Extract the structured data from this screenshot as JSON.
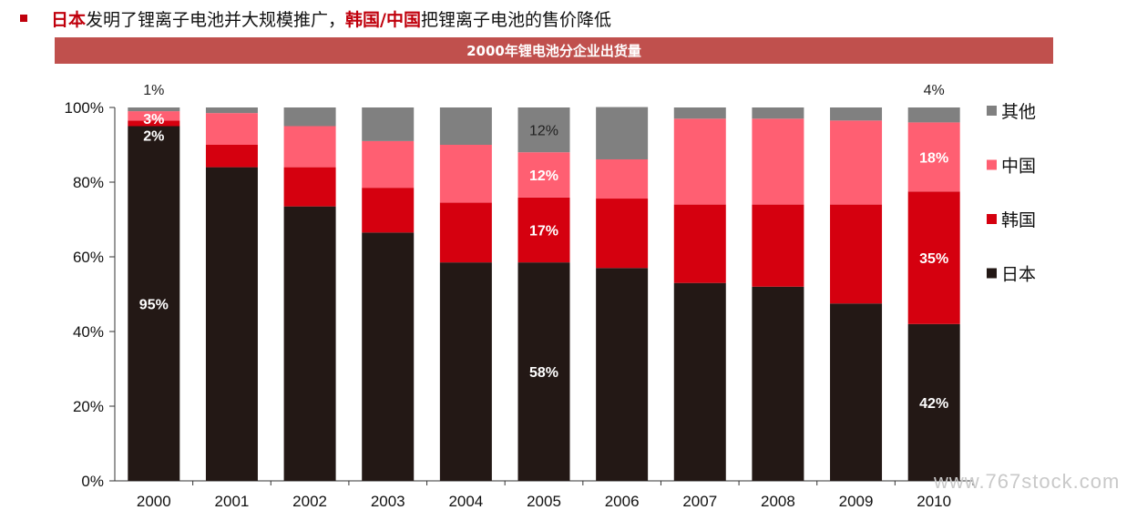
{
  "headline": {
    "part1": "日本",
    "part2": "发明了锂离子电池并大规模推广，",
    "part3": "韩国/中国",
    "part4": "把锂离子电池的售价降低"
  },
  "banner": {
    "title": "2000年锂电池分企业出货量"
  },
  "watermark": "www.767stock.com",
  "chart_data": {
    "type": "bar",
    "stacked": true,
    "title": "2000年锂电池分企业出货量",
    "categories": [
      "2000",
      "2001",
      "2002",
      "2003",
      "2004",
      "2005",
      "2006",
      "2007",
      "2008",
      "2009",
      "2010"
    ],
    "series": [
      {
        "name": "日本",
        "color": "#231815",
        "values": [
          95,
          84,
          73.5,
          66.5,
          58.5,
          58.5,
          57,
          53,
          52,
          47.5,
          42
        ]
      },
      {
        "name": "韩国",
        "color": "#d5000f",
        "values": [
          1.5,
          6,
          10.5,
          12,
          16,
          17.4,
          18.6,
          21,
          22,
          26.5,
          35.5
        ]
      },
      {
        "name": "中国",
        "color": "#ff5f72",
        "values": [
          2.5,
          8.5,
          11,
          12.5,
          15.5,
          12.1,
          10.5,
          23,
          23,
          22.5,
          18.5
        ]
      },
      {
        "name": "其他",
        "color": "#808080",
        "values": [
          1,
          1.5,
          5,
          9,
          10,
          12,
          14,
          3,
          3,
          3.5,
          4
        ]
      }
    ],
    "yaxis": {
      "min": 0,
      "max": 100,
      "ticks": [
        "0%",
        "20%",
        "40%",
        "60%",
        "80%",
        "100%"
      ]
    },
    "legend": {
      "position": "right",
      "order": [
        "其他",
        "中国",
        "韩国",
        "日本"
      ]
    },
    "data_labels": [
      {
        "category": "2000",
        "series": "日本",
        "text": "95%"
      },
      {
        "category": "2000",
        "series": "韩国",
        "text": "2%"
      },
      {
        "category": "2000",
        "series": "中国",
        "text": "3%"
      },
      {
        "category": "2000",
        "series": "其他",
        "text": "1%"
      },
      {
        "category": "2005",
        "series": "日本",
        "text": "58%"
      },
      {
        "category": "2005",
        "series": "韩国",
        "text": "17%"
      },
      {
        "category": "2005",
        "series": "中国",
        "text": "12%"
      },
      {
        "category": "2005",
        "series": "其他",
        "text": "12%"
      },
      {
        "category": "2010",
        "series": "日本",
        "text": "42%"
      },
      {
        "category": "2010",
        "series": "韩国",
        "text": "35%"
      },
      {
        "category": "2010",
        "series": "中国",
        "text": "18%"
      },
      {
        "category": "2010",
        "series": "其他",
        "text": "4%"
      }
    ]
  }
}
